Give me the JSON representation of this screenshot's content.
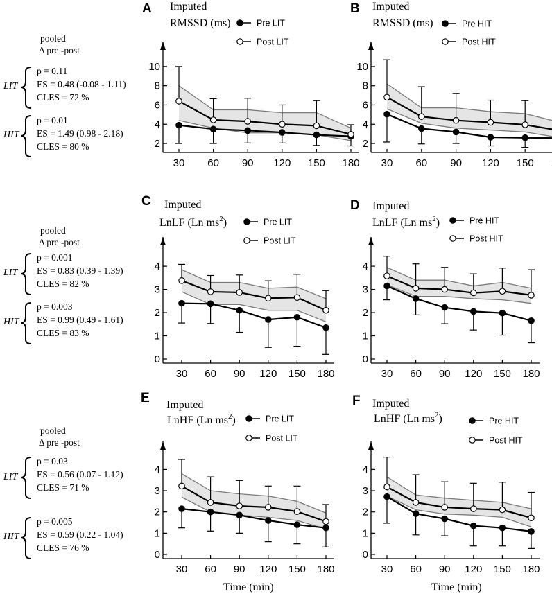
{
  "x_axis_label": "Time (min)",
  "stats_header": [
    "pooled",
    "Δ pre -post"
  ],
  "colors": {
    "line": "#000000",
    "band_fill": "#e5e5e5",
    "band_edge": "#7a7a7a"
  },
  "stats_rows": [
    {
      "LIT": {
        "label": "LIT",
        "p": "p = 0.11",
        "es": "ES = 0.48 (-0.08 - 1.11)",
        "cles": "CLES = 72 %"
      },
      "HIT": {
        "label": "HIT",
        "p": "p = 0.01",
        "es": "ES = 1.49 (0.98 - 2.18)",
        "cles": "CLES = 80 %"
      }
    },
    {
      "LIT": {
        "label": "LIT",
        "p": "p = 0.001",
        "es": "ES = 0.83 (0.39 - 1.39)",
        "cles": "CLES = 82 %"
      },
      "HIT": {
        "label": "HIT",
        "p": "p = 0.003",
        "es": "ES = 0.99 (0.49 - 1.61)",
        "cles": "CLES = 83 %"
      }
    },
    {
      "LIT": {
        "label": "LIT",
        "p": "p = 0.03",
        "es": "ES = 0.56 (0.07 - 1.12)",
        "cles": "CLES = 71 %"
      },
      "HIT": {
        "label": "HIT",
        "p": "p = 0.005",
        "es": "ES = 0.59 (0.22 - 1.04)",
        "cles": "CLES = 76 %"
      }
    }
  ],
  "chart_data": [
    {
      "panel": "A",
      "type": "line",
      "title": [
        "Imputed",
        "RMSSD (ms)"
      ],
      "title_sup": "",
      "x": [
        30,
        60,
        90,
        120,
        150,
        180
      ],
      "xlabel": "Time (min)",
      "ylim": [
        1.5,
        11
      ],
      "yticks": [
        2,
        4,
        6,
        8,
        10
      ],
      "series": [
        {
          "name": "Pre LIT",
          "marker": "filled",
          "values": [
            3.9,
            3.5,
            3.35,
            3.15,
            2.9,
            2.75
          ],
          "err": [
            1.9,
            1.5,
            1.3,
            1.1,
            1.1,
            1.0
          ]
        },
        {
          "name": "Post LIT",
          "marker": "open",
          "values": [
            6.4,
            4.45,
            4.3,
            4.0,
            3.85,
            2.95
          ],
          "err": [
            3.6,
            2.2,
            2.4,
            2.0,
            2.6,
            1.0
          ]
        }
      ],
      "band": {
        "lower": [
          4.4,
          3.6,
          3.1,
          3.1,
          2.9,
          2.3
        ],
        "upper": [
          8.0,
          5.5,
          5.5,
          5.2,
          5.2,
          3.6
        ]
      }
    },
    {
      "panel": "B",
      "type": "line",
      "title": [
        "Imputed",
        "RMSSD (ms)"
      ],
      "title_sup": "",
      "x": [
        30,
        60,
        90,
        120,
        150,
        180
      ],
      "xlabel": "Time (min)",
      "ylim": [
        1.5,
        11
      ],
      "yticks": [
        2,
        4,
        6,
        8,
        10
      ],
      "series": [
        {
          "name": "Pre HIT",
          "marker": "filled",
          "values": [
            5.05,
            3.55,
            3.2,
            2.65,
            2.6,
            2.55
          ],
          "err": [
            2.9,
            1.6,
            1.2,
            0.9,
            1.0,
            0.9
          ]
        },
        {
          "name": "Post HIT",
          "marker": "open",
          "values": [
            6.8,
            4.8,
            4.4,
            4.2,
            3.95,
            3.35
          ],
          "err": [
            3.9,
            3.1,
            2.8,
            2.3,
            2.5,
            2.0
          ]
        }
      ],
      "band": {
        "lower": [
          5.6,
          4.1,
          3.6,
          3.4,
          3.2,
          2.6
        ],
        "upper": [
          8.2,
          5.7,
          5.7,
          5.3,
          5.1,
          4.2
        ]
      }
    },
    {
      "panel": "C",
      "type": "line",
      "title": [
        "Imputed",
        "LnLF (Ln ms"
      ],
      "title_sup": "2",
      "x": [
        30,
        60,
        90,
        120,
        150,
        180
      ],
      "xlabel": "Time (min)",
      "ylim": [
        0,
        4.6
      ],
      "yticks": [
        0,
        1,
        2,
        3,
        4
      ],
      "series": [
        {
          "name": "Pre LIT",
          "marker": "filled",
          "values": [
            2.4,
            2.38,
            2.1,
            1.7,
            1.8,
            1.35
          ],
          "err": [
            0.85,
            0.85,
            0.95,
            1.2,
            1.25,
            1.15
          ]
        },
        {
          "name": "Post LIT",
          "marker": "open",
          "values": [
            3.38,
            2.9,
            2.87,
            2.62,
            2.65,
            2.1
          ],
          "err": [
            0.7,
            0.7,
            0.75,
            0.75,
            1.0,
            0.85
          ]
        }
      ],
      "band": {
        "lower": [
          2.9,
          2.35,
          2.35,
          2.1,
          2.1,
          1.6
        ],
        "upper": [
          3.85,
          3.3,
          3.3,
          3.05,
          3.1,
          2.6
        ]
      }
    },
    {
      "panel": "D",
      "type": "line",
      "title": [
        "Imputed",
        "LnLF (Ln ms"
      ],
      "title_sup": "2",
      "x": [
        30,
        60,
        90,
        120,
        150,
        180
      ],
      "xlabel": "Time (min)",
      "ylim": [
        0,
        4.6
      ],
      "yticks": [
        0,
        1,
        2,
        3,
        4
      ],
      "series": [
        {
          "name": "Pre HIT",
          "marker": "filled",
          "values": [
            3.15,
            2.6,
            2.22,
            2.05,
            1.98,
            1.65
          ],
          "err": [
            0.6,
            0.7,
            0.7,
            0.8,
            0.95,
            0.95
          ]
        },
        {
          "name": "Post HIT",
          "marker": "open",
          "values": [
            3.58,
            3.05,
            3.0,
            2.85,
            2.92,
            2.75
          ],
          "err": [
            0.85,
            1.05,
            0.95,
            0.82,
            1.0,
            1.1
          ]
        }
      ],
      "band": {
        "lower": [
          3.2,
          2.7,
          2.7,
          2.6,
          2.55,
          2.4
        ],
        "upper": [
          3.95,
          3.4,
          3.4,
          3.15,
          3.3,
          3.05
        ]
      }
    },
    {
      "panel": "E",
      "type": "line",
      "title": [
        "Imputed",
        "LnHF (Ln ms"
      ],
      "title_sup": "2",
      "x": [
        30,
        60,
        90,
        120,
        150,
        180
      ],
      "xlabel": "Time (min)",
      "ylim": [
        0,
        4.6
      ],
      "yticks": [
        0,
        1,
        2,
        3,
        4
      ],
      "series": [
        {
          "name": "Pre LIT",
          "marker": "filled",
          "values": [
            2.15,
            2.0,
            1.85,
            1.6,
            1.4,
            1.25
          ],
          "err": [
            0.9,
            0.9,
            0.85,
            1.0,
            0.9,
            0.9
          ]
        },
        {
          "name": "Post LIT",
          "marker": "open",
          "values": [
            3.22,
            2.45,
            2.28,
            2.22,
            2.02,
            1.55
          ],
          "err": [
            1.25,
            1.2,
            1.2,
            1.0,
            1.2,
            0.8
          ]
        }
      ],
      "band": {
        "lower": [
          2.7,
          2.0,
          1.85,
          1.75,
          1.6,
          1.2
        ],
        "upper": [
          3.8,
          3.0,
          2.85,
          2.75,
          2.5,
          1.95
        ]
      }
    },
    {
      "panel": "F",
      "type": "line",
      "title": [
        "Imputed",
        "LnHF (Ln ms"
      ],
      "title_sup": "2",
      "x": [
        30,
        60,
        90,
        120,
        150,
        180
      ],
      "xlabel": "Time (min)",
      "ylim": [
        0,
        4.6
      ],
      "yticks": [
        0,
        1,
        2,
        3,
        4
      ],
      "series": [
        {
          "name": "Pre HIT",
          "marker": "filled",
          "values": [
            2.72,
            1.92,
            1.68,
            1.35,
            1.25,
            1.08
          ],
          "err": [
            1.25,
            1.0,
            0.8,
            0.95,
            0.85,
            0.8
          ]
        },
        {
          "name": "Post HIT",
          "marker": "open",
          "values": [
            3.18,
            2.45,
            2.22,
            2.15,
            2.1,
            1.72
          ],
          "err": [
            1.4,
            1.3,
            1.2,
            1.2,
            1.3,
            1.2
          ]
        }
      ],
      "band": {
        "lower": [
          2.75,
          2.1,
          1.9,
          1.85,
          1.75,
          1.3
        ],
        "upper": [
          3.65,
          2.8,
          2.65,
          2.55,
          2.45,
          2.15
        ]
      }
    }
  ]
}
